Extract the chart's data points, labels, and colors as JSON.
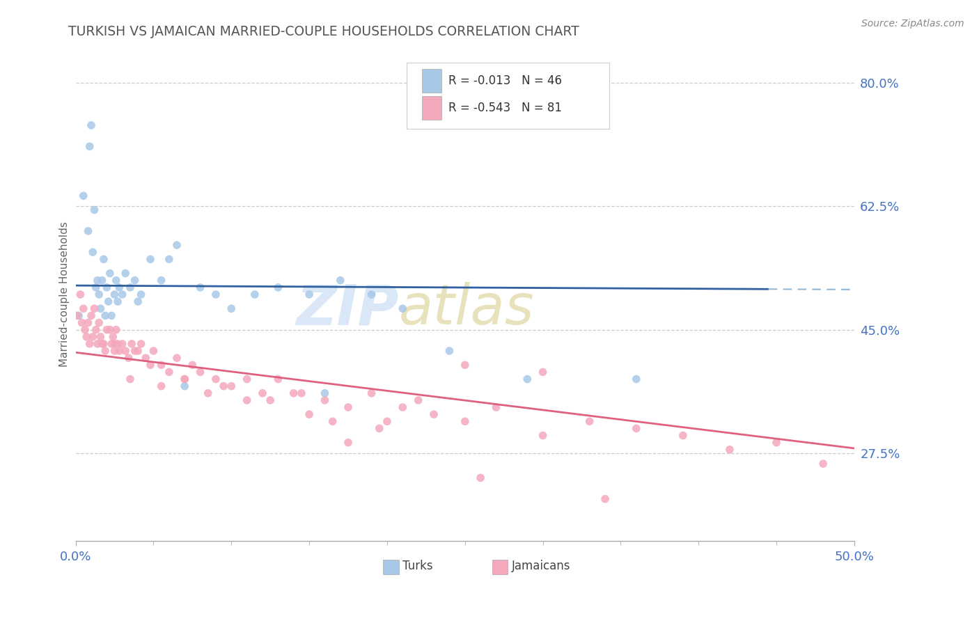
{
  "title": "TURKISH VS JAMAICAN MARRIED-COUPLE HOUSEHOLDS CORRELATION CHART",
  "source": "Source: ZipAtlas.com",
  "ylabel": "Married-couple Households",
  "xmin": 0.0,
  "xmax": 0.5,
  "ymin": 0.15,
  "ymax": 0.85,
  "yticks": [
    0.275,
    0.45,
    0.625,
    0.8
  ],
  "ytick_labels": [
    "27.5%",
    "45.0%",
    "62.5%",
    "80.0%"
  ],
  "xtick_labels": [
    "0.0%",
    "50.0%"
  ],
  "turks_color": "#A8C8E8",
  "jamaicans_color": "#F4A8BC",
  "turks_line_color": "#3060A0",
  "jamaicans_line_color": "#E06080",
  "dashed_line_color": "#90B8D8",
  "title_color": "#555555",
  "label_color": "#4472C4",
  "background_color": "#FFFFFF",
  "legend_turks_r": "-0.013",
  "legend_turks_n": "46",
  "legend_jam_r": "-0.543",
  "legend_jam_n": "81",
  "turks_x": [
    0.002,
    0.005,
    0.008,
    0.009,
    0.01,
    0.011,
    0.012,
    0.013,
    0.014,
    0.015,
    0.016,
    0.017,
    0.018,
    0.019,
    0.02,
    0.021,
    0.022,
    0.023,
    0.025,
    0.026,
    0.027,
    0.028,
    0.03,
    0.032,
    0.035,
    0.038,
    0.042,
    0.048,
    0.055,
    0.065,
    0.08,
    0.09,
    0.1,
    0.115,
    0.13,
    0.15,
    0.17,
    0.19,
    0.06,
    0.04,
    0.21,
    0.24,
    0.07,
    0.16,
    0.29,
    0.36
  ],
  "turks_y": [
    0.47,
    0.64,
    0.59,
    0.71,
    0.74,
    0.56,
    0.62,
    0.51,
    0.52,
    0.5,
    0.48,
    0.52,
    0.55,
    0.47,
    0.51,
    0.49,
    0.53,
    0.47,
    0.5,
    0.52,
    0.49,
    0.51,
    0.5,
    0.53,
    0.51,
    0.52,
    0.5,
    0.55,
    0.52,
    0.57,
    0.51,
    0.5,
    0.48,
    0.5,
    0.51,
    0.5,
    0.52,
    0.5,
    0.55,
    0.49,
    0.48,
    0.42,
    0.37,
    0.36,
    0.38,
    0.38
  ],
  "jamaicans_x": [
    0.001,
    0.003,
    0.004,
    0.005,
    0.006,
    0.007,
    0.008,
    0.009,
    0.01,
    0.011,
    0.012,
    0.013,
    0.014,
    0.015,
    0.016,
    0.017,
    0.018,
    0.019,
    0.02,
    0.022,
    0.023,
    0.024,
    0.025,
    0.026,
    0.027,
    0.028,
    0.03,
    0.032,
    0.034,
    0.036,
    0.038,
    0.04,
    0.042,
    0.045,
    0.048,
    0.05,
    0.055,
    0.06,
    0.065,
    0.07,
    0.075,
    0.08,
    0.09,
    0.1,
    0.11,
    0.12,
    0.13,
    0.145,
    0.16,
    0.175,
    0.19,
    0.21,
    0.23,
    0.25,
    0.27,
    0.3,
    0.33,
    0.36,
    0.39,
    0.42,
    0.45,
    0.48,
    0.3,
    0.15,
    0.2,
    0.25,
    0.175,
    0.125,
    0.095,
    0.07,
    0.055,
    0.035,
    0.025,
    0.085,
    0.11,
    0.14,
    0.165,
    0.195,
    0.22,
    0.26,
    0.34
  ],
  "jamaicans_y": [
    0.47,
    0.5,
    0.46,
    0.48,
    0.45,
    0.44,
    0.46,
    0.43,
    0.47,
    0.44,
    0.48,
    0.45,
    0.43,
    0.46,
    0.44,
    0.43,
    0.43,
    0.42,
    0.45,
    0.45,
    0.43,
    0.44,
    0.43,
    0.45,
    0.43,
    0.42,
    0.43,
    0.42,
    0.41,
    0.43,
    0.42,
    0.42,
    0.43,
    0.41,
    0.4,
    0.42,
    0.4,
    0.39,
    0.41,
    0.38,
    0.4,
    0.39,
    0.38,
    0.37,
    0.38,
    0.36,
    0.38,
    0.36,
    0.35,
    0.34,
    0.36,
    0.34,
    0.33,
    0.32,
    0.34,
    0.3,
    0.32,
    0.31,
    0.3,
    0.28,
    0.29,
    0.26,
    0.39,
    0.33,
    0.32,
    0.4,
    0.29,
    0.35,
    0.37,
    0.38,
    0.37,
    0.38,
    0.42,
    0.36,
    0.35,
    0.36,
    0.32,
    0.31,
    0.35,
    0.24,
    0.21
  ]
}
